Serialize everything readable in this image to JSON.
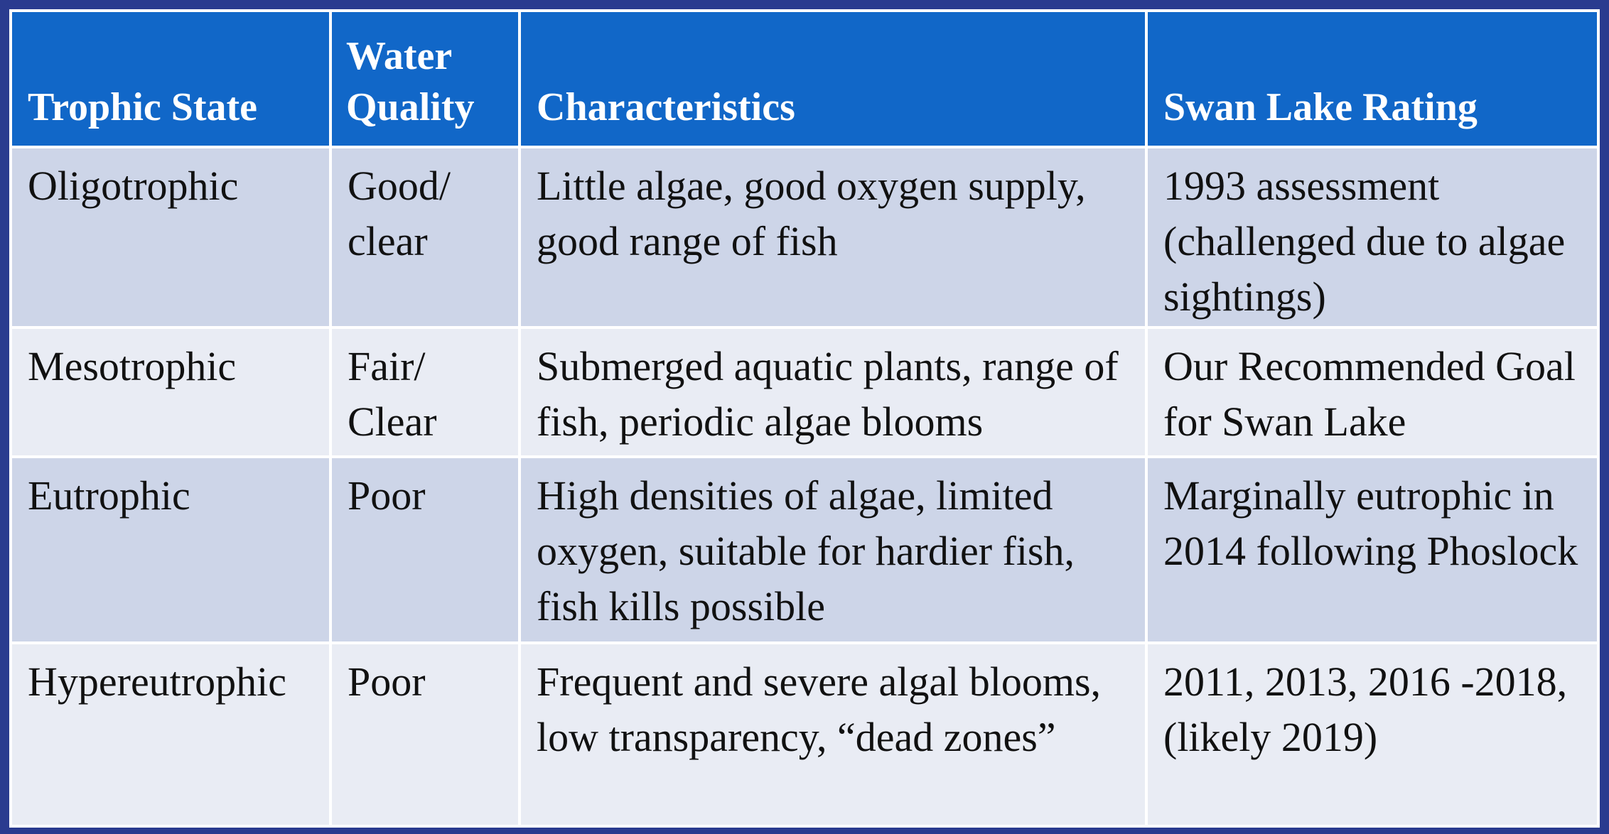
{
  "table": {
    "headers": {
      "trophic_state": "Trophic State",
      "water_quality_line1": "Water",
      "water_quality_line2": "Quality",
      "characteristics": "Characteristics",
      "rating": "Swan Lake Rating"
    },
    "rows": [
      {
        "state": "Oligotrophic",
        "quality_line1": "Good/",
        "quality_line2": "clear",
        "characteristics": "Little algae, good oxygen supply, good range of fish",
        "rating": "1993 assessment (challenged due to algae sightings)"
      },
      {
        "state": "Mesotrophic",
        "quality_line1": "Fair/",
        "quality_line2": "Clear",
        "characteristics": "Submerged aquatic plants, range of fish, periodic algae blooms",
        "rating": "Our Recommended Goal for Swan Lake"
      },
      {
        "state": "Eutrophic",
        "quality_line1": "Poor",
        "quality_line2": "",
        "characteristics": "High densities of algae, limited oxygen, suitable for hardier fish, fish kills possible",
        "rating": "Marginally eutrophic in 2014 following Phoslock"
      },
      {
        "state": "Hypereutrophic",
        "quality_line1": "Poor",
        "quality_line2": "",
        "characteristics": "Frequent and severe algal blooms, low transparency, “dead zones”",
        "rating": "2011, 2013, 2016 -2018, (likely 2019)"
      }
    ]
  },
  "colors": {
    "border": "#2a3b8f",
    "header_background": "#1167c8",
    "row_dark": "#cdd5e8",
    "row_light": "#e9ecf4"
  }
}
